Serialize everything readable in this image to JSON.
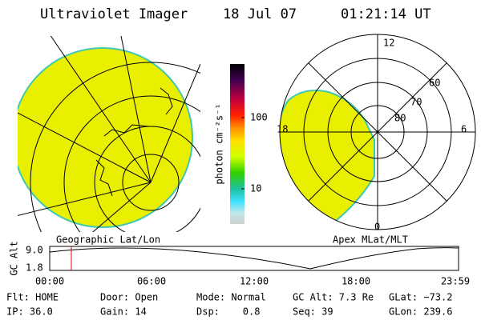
{
  "header": {
    "title": "Ultraviolet Imager",
    "date": "18 Jul 07",
    "time": "01:21:14 UT"
  },
  "colorbar": {
    "label": "photon cm⁻²s⁻¹",
    "ticks": [
      "100",
      "10"
    ]
  },
  "polar": {
    "labels": [
      "12",
      "60",
      "70",
      "80",
      "18",
      "6",
      "0"
    ]
  },
  "captions": {
    "left": "Geographic Lat/Lon",
    "right": "Apex MLat/MLT"
  },
  "altitude": {
    "axis_label": "GC Alt",
    "yticks": [
      "9.0",
      "1.8"
    ],
    "xticks": [
      "00:00",
      "06:00",
      "12:00",
      "18:00",
      "23:59"
    ]
  },
  "footer": {
    "rows": [
      [
        "Flt: HOME",
        "Door: Open",
        "Mode: Normal",
        "GC Alt: 7.3 Re",
        "GLat: −73.2"
      ],
      [
        "IP: 36.0",
        "Gain: 14",
        "Dsp:    0.8",
        "Seq: 39",
        "GLon: 239.6"
      ]
    ]
  }
}
